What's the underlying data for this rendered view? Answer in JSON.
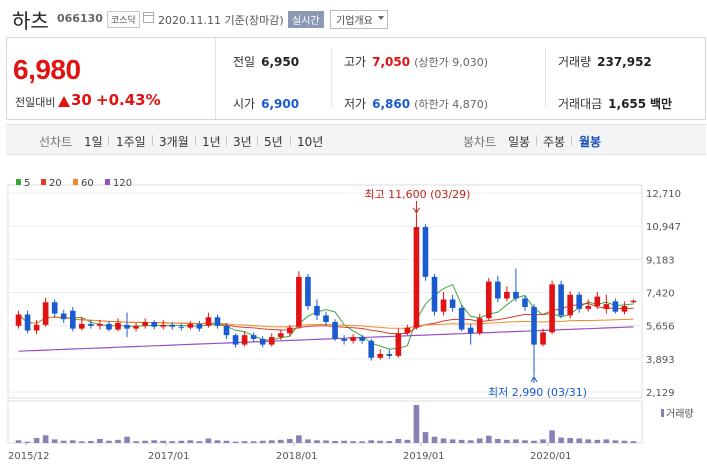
{
  "header": {
    "stock_name": "하츠",
    "stock_code": "066130",
    "market_badge": "코스닥",
    "date_text": "2020.11.11 기준(장마감)",
    "live_button": "실시간",
    "company_info_select": "기업개요"
  },
  "quote": {
    "price": "6,980",
    "compare_label": "전일대비",
    "change": "30",
    "change_rate": "+0.43%",
    "prev_close_label": "전일",
    "prev_close": "6,950",
    "high_label": "고가",
    "high": "7,050",
    "upper_limit": "(상한가 9,030)",
    "volume_label": "거래량",
    "volume": "237,952",
    "open_label": "시가",
    "open": "6,900",
    "low_label": "저가",
    "low": "6,860",
    "lower_limit": "(하한가 4,870)",
    "amount_label": "거래대금",
    "amount": "1,655",
    "amount_unit": "백만"
  },
  "tabs": {
    "line_label": "선차트",
    "line_periods": [
      "1일",
      "1주일",
      "3개월",
      "1년",
      "3년",
      "5년",
      "10년"
    ],
    "candle_label": "봉차트",
    "candle_periods": [
      "일봉",
      "주봉",
      "월봉"
    ],
    "candle_selected": "월봉"
  },
  "colors": {
    "up": "#e01212",
    "down": "#1a5bd0",
    "ma5": "#3fa63f",
    "ma20": "#d93d2e",
    "ma60": "#ee8a2a",
    "ma120": "#9a4fc1",
    "volume": "#8b7fb5"
  },
  "chart_data": {
    "type": "candlestick",
    "legend": [
      {
        "name": "5",
        "color": "#3fa63f"
      },
      {
        "name": "20",
        "color": "#d93d2e"
      },
      {
        "name": "60",
        "color": "#ee8a2a"
      },
      {
        "name": "120",
        "color": "#9a4fc1"
      }
    ],
    "y_ticks": [
      "12,710",
      "10,947",
      "9,183",
      "7,420",
      "5,656",
      "3,893",
      "2,129"
    ],
    "ylim": [
      2129,
      12710
    ],
    "x_ticks": [
      "2015/12",
      "2017/01",
      "2018/01",
      "2019/01",
      "2020/01"
    ],
    "volume_label": "거래량",
    "high_annotation": "최고 11,600 (03/29)",
    "low_annotation": "최저 2,990 (03/31)",
    "high_value": 11600,
    "low_value": 2990,
    "candles": [
      {
        "o": 5650,
        "c": 6250,
        "h": 6450,
        "l": 5500
      },
      {
        "o": 6250,
        "c": 5400,
        "h": 6450,
        "l": 5250
      },
      {
        "o": 5400,
        "c": 5700,
        "h": 5950,
        "l": 5200
      },
      {
        "o": 5700,
        "c": 6900,
        "h": 7150,
        "l": 5600
      },
      {
        "o": 6900,
        "c": 6300,
        "h": 7050,
        "l": 6100
      },
      {
        "o": 6300,
        "c": 6000,
        "h": 6500,
        "l": 5800
      },
      {
        "o": 6450,
        "c": 5500,
        "h": 6650,
        "l": 5350
      },
      {
        "o": 5500,
        "c": 5750,
        "h": 6100,
        "l": 5400
      },
      {
        "o": 5750,
        "c": 5650,
        "h": 5950,
        "l": 5500
      },
      {
        "o": 5650,
        "c": 5750,
        "h": 5950,
        "l": 5450
      },
      {
        "o": 5750,
        "c": 5450,
        "h": 5900,
        "l": 5350
      },
      {
        "o": 5450,
        "c": 5800,
        "h": 6050,
        "l": 5350
      },
      {
        "o": 5700,
        "c": 5500,
        "h": 6350,
        "l": 5050
      },
      {
        "o": 5500,
        "c": 5650,
        "h": 5800,
        "l": 5350
      },
      {
        "o": 5650,
        "c": 5850,
        "h": 6050,
        "l": 5500
      },
      {
        "o": 5850,
        "c": 5600,
        "h": 5950,
        "l": 5450
      },
      {
        "o": 5600,
        "c": 5700,
        "h": 5950,
        "l": 5450
      },
      {
        "o": 5700,
        "c": 5600,
        "h": 5850,
        "l": 5450
      },
      {
        "o": 5600,
        "c": 5550,
        "h": 5750,
        "l": 5400
      },
      {
        "o": 5550,
        "c": 5750,
        "h": 5900,
        "l": 5450
      },
      {
        "o": 5750,
        "c": 5500,
        "h": 5900,
        "l": 5350
      },
      {
        "o": 5650,
        "c": 6100,
        "h": 6350,
        "l": 5550
      },
      {
        "o": 6100,
        "c": 5650,
        "h": 6250,
        "l": 5500
      },
      {
        "o": 5650,
        "c": 5150,
        "h": 5800,
        "l": 4950
      },
      {
        "o": 5150,
        "c": 4650,
        "h": 5250,
        "l": 4500
      },
      {
        "o": 4650,
        "c": 5150,
        "h": 5350,
        "l": 4550
      },
      {
        "o": 5150,
        "c": 4950,
        "h": 5300,
        "l": 4800
      },
      {
        "o": 4950,
        "c": 4650,
        "h": 5100,
        "l": 4500
      },
      {
        "o": 4650,
        "c": 5050,
        "h": 5250,
        "l": 4550
      },
      {
        "o": 5050,
        "c": 5250,
        "h": 5450,
        "l": 4900
      },
      {
        "o": 5250,
        "c": 5550,
        "h": 5700,
        "l": 5100
      },
      {
        "o": 5600,
        "c": 8250,
        "h": 8550,
        "l": 5500
      },
      {
        "o": 8250,
        "c": 6700,
        "h": 8400,
        "l": 6500
      },
      {
        "o": 6700,
        "c": 6200,
        "h": 7050,
        "l": 5950
      },
      {
        "o": 6200,
        "c": 5850,
        "h": 6400,
        "l": 5650
      },
      {
        "o": 5850,
        "c": 4950,
        "h": 6000,
        "l": 4850
      },
      {
        "o": 4950,
        "c": 4850,
        "h": 5150,
        "l": 4650
      },
      {
        "o": 4850,
        "c": 5050,
        "h": 5200,
        "l": 4700
      },
      {
        "o": 5050,
        "c": 4850,
        "h": 5150,
        "l": 4700
      },
      {
        "o": 4850,
        "c": 3950,
        "h": 4950,
        "l": 3800
      },
      {
        "o": 3950,
        "c": 4150,
        "h": 4400,
        "l": 3850
      },
      {
        "o": 4150,
        "c": 4050,
        "h": 4400,
        "l": 3900
      },
      {
        "o": 4050,
        "c": 5250,
        "h": 5500,
        "l": 3950
      },
      {
        "o": 5250,
        "c": 5550,
        "h": 5700,
        "l": 5150
      },
      {
        "o": 5550,
        "c": 10900,
        "h": 11600,
        "l": 5450
      },
      {
        "o": 10900,
        "c": 8250,
        "h": 11050,
        "l": 8050
      },
      {
        "o": 8250,
        "c": 6400,
        "h": 8400,
        "l": 6200
      },
      {
        "o": 6400,
        "c": 7050,
        "h": 7450,
        "l": 6200
      },
      {
        "o": 7050,
        "c": 6600,
        "h": 7300,
        "l": 6400
      },
      {
        "o": 6600,
        "c": 5450,
        "h": 6750,
        "l": 5350
      },
      {
        "o": 5550,
        "c": 5250,
        "h": 5750,
        "l": 4650
      },
      {
        "o": 5250,
        "c": 6050,
        "h": 6300,
        "l": 5150
      },
      {
        "o": 6050,
        "c": 8000,
        "h": 8200,
        "l": 5950
      },
      {
        "o": 8000,
        "c": 7100,
        "h": 8300,
        "l": 6900
      },
      {
        "o": 7100,
        "c": 7450,
        "h": 7750,
        "l": 6950
      },
      {
        "o": 7450,
        "c": 7100,
        "h": 8700,
        "l": 6950
      },
      {
        "o": 7100,
        "c": 6650,
        "h": 7250,
        "l": 6450
      },
      {
        "o": 6650,
        "c": 4650,
        "h": 6800,
        "l": 2990
      },
      {
        "o": 4650,
        "c": 5300,
        "h": 5500,
        "l": 4550
      },
      {
        "o": 5300,
        "c": 7850,
        "h": 8050,
        "l": 5200
      },
      {
        "o": 7850,
        "c": 6200,
        "h": 8050,
        "l": 6050
      },
      {
        "o": 6200,
        "c": 7300,
        "h": 7500,
        "l": 6050
      },
      {
        "o": 7300,
        "c": 6550,
        "h": 7450,
        "l": 6350
      },
      {
        "o": 6550,
        "c": 6700,
        "h": 7050,
        "l": 6400
      },
      {
        "o": 6700,
        "c": 7200,
        "h": 7450,
        "l": 6550
      },
      {
        "o": 6550,
        "c": 6800,
        "h": 7300,
        "l": 6300
      },
      {
        "o": 6950,
        "c": 6400,
        "h": 7100,
        "l": 6300
      },
      {
        "o": 6400,
        "c": 6700,
        "h": 6950,
        "l": 6250
      },
      {
        "o": 6900,
        "c": 6980,
        "h": 7050,
        "l": 6860
      }
    ],
    "volumes": [
      30,
      15,
      55,
      85,
      40,
      25,
      30,
      18,
      22,
      45,
      25,
      35,
      70,
      20,
      25,
      30,
      25,
      20,
      25,
      30,
      20,
      50,
      30,
      25,
      15,
      20,
      18,
      25,
      30,
      35,
      45,
      85,
      40,
      30,
      28,
      22,
      25,
      20,
      18,
      30,
      25,
      22,
      45,
      35,
      420,
      120,
      70,
      50,
      40,
      35,
      30,
      50,
      80,
      45,
      35,
      40,
      30,
      25,
      40,
      140,
      60,
      55,
      50,
      40,
      35,
      40,
      30,
      25,
      20
    ]
  }
}
